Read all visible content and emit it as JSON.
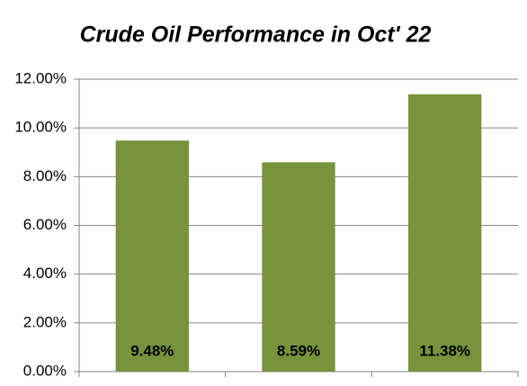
{
  "chart_data": {
    "type": "bar",
    "title": "Crude Oil Performance in Oct' 22",
    "categories": [
      null,
      null,
      null
    ],
    "values": [
      9.48,
      8.59,
      11.38
    ],
    "value_labels": [
      "9.48%",
      "8.59%",
      "11.38%"
    ],
    "color": "#77933c",
    "ylim": [
      0,
      12
    ],
    "yticks": [
      {
        "value": 0,
        "label": "0.00%"
      },
      {
        "value": 2,
        "label": "2.00%"
      },
      {
        "value": 4,
        "label": "4.00%"
      },
      {
        "value": 6,
        "label": "6.00%"
      },
      {
        "value": 8,
        "label": "8.00%"
      },
      {
        "value": 10,
        "label": "10.00%"
      },
      {
        "value": 12,
        "label": "12.00%"
      }
    ],
    "grid": true
  }
}
